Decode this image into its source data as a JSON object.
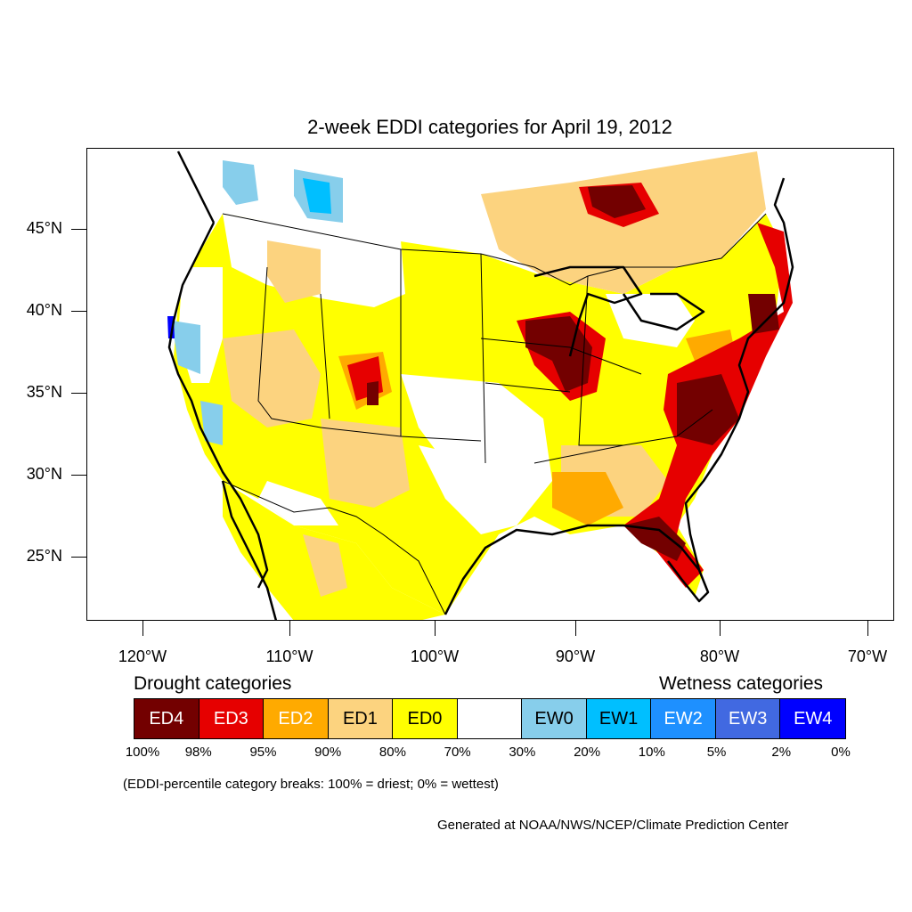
{
  "title": "2-week EDDI categories for April 19, 2012",
  "axes": {
    "lat_labels": [
      "45°N",
      "40°N",
      "35°N",
      "30°N",
      "25°N"
    ],
    "lon_labels": [
      "120°W",
      "110°W",
      "100°W",
      "90°W",
      "80°W",
      "70°W"
    ]
  },
  "legend": {
    "drought_heading": "Drought categories",
    "wetness_heading": "Wetness categories",
    "categories": [
      {
        "label": "ED4",
        "color": "#730000",
        "text_color": "#ffffff"
      },
      {
        "label": "ED3",
        "color": "#e60000",
        "text_color": "#ffffff"
      },
      {
        "label": "ED2",
        "color": "#ffaa00",
        "text_color": "#ffffff"
      },
      {
        "label": "ED1",
        "color": "#fcd37f",
        "text_color": "#000000"
      },
      {
        "label": "ED0",
        "color": "#ffff00",
        "text_color": "#000000"
      },
      {
        "label": "",
        "color": "#ffffff",
        "text_color": "#000000"
      },
      {
        "label": "EW0",
        "color": "#87ceeb",
        "text_color": "#000000"
      },
      {
        "label": "EW1",
        "color": "#00bfff",
        "text_color": "#000000"
      },
      {
        "label": "EW2",
        "color": "#1e90ff",
        "text_color": "#ffffff"
      },
      {
        "label": "EW3",
        "color": "#4169e1",
        "text_color": "#ffffff"
      },
      {
        "label": "EW4",
        "color": "#0000ff",
        "text_color": "#ffffff"
      }
    ],
    "percentiles": [
      "100%",
      "98%",
      "95%",
      "90%",
      "80%",
      "70%",
      "30%",
      "20%",
      "10%",
      "5%",
      "2%",
      "0%"
    ]
  },
  "note": "(EDDI-percentile category breaks: 100% = driest; 0% = wettest)",
  "credit": "Generated at NOAA/NWS/NCEP/Climate Prediction Center"
}
